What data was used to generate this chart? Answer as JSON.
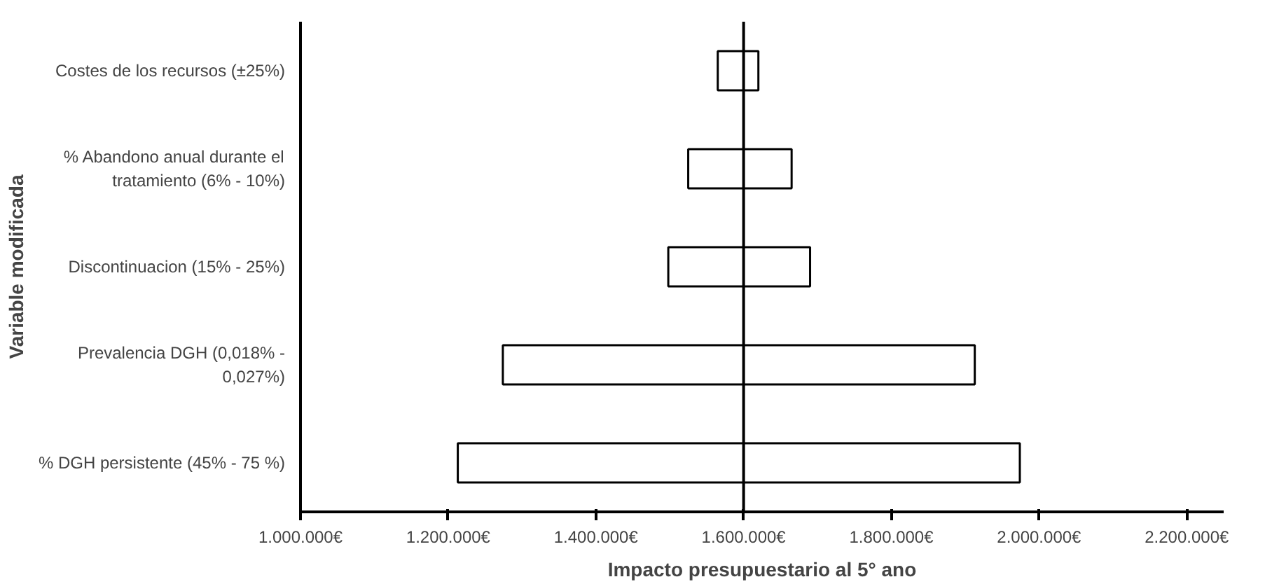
{
  "chart_data": {
    "type": "bar",
    "orientation": "horizontal",
    "xlabel": "Impacto presupuestario al 5° ano",
    "ylabel": "Variable modificada",
    "categories": [
      "Costes de los recursos (±25%)",
      "% Abandono anual durante el\ntratamiento (6% - 10%)",
      "Discontinuacion (15% - 25%)",
      "Prevalencia DGH (0,018% -\n0,027%)",
      "% DGH persistente (45% - 75 %)"
    ],
    "base": [
      1565000,
      1525000,
      1498000,
      1274000,
      1213000
    ],
    "values": [
      55000,
      140000,
      192000,
      639000,
      761000
    ],
    "color": "#ffffff",
    "xlim": [
      1000000,
      2250000
    ],
    "xticks": [
      {
        "value": 1000000,
        "label": "1.000.000€"
      },
      {
        "value": 1200000,
        "label": "1.200.000€"
      },
      {
        "value": 1400000,
        "label": "1.400.000€"
      },
      {
        "value": 1600000,
        "label": "1.600.000€"
      },
      {
        "value": 1800000,
        "label": "1.800.000€"
      },
      {
        "value": 2000000,
        "label": "2.000.000€"
      },
      {
        "value": 2200000,
        "label": "2.200.000€"
      }
    ],
    "ref_lines": [
      {
        "axis": "x",
        "value": 1600000,
        "color": "#000000"
      }
    ],
    "grid": false
  }
}
